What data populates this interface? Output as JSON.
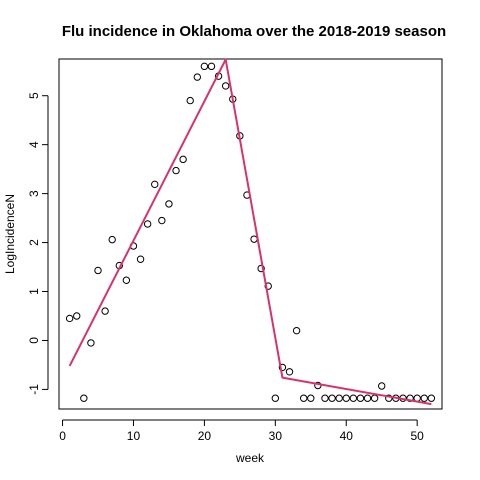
{
  "chart_data": {
    "type": "scatter",
    "title": "Flu incidence in Oklahoma over the 2018-2019 season",
    "xlabel": "week",
    "ylabel": "LogIncidenceN",
    "xlim": [
      -0.5,
      53.5
    ],
    "ylim": [
      -1.4,
      5.75
    ],
    "x_ticks": [
      0,
      10,
      20,
      30,
      40,
      50
    ],
    "y_ticks": [
      -1,
      0,
      1,
      2,
      3,
      4,
      5
    ],
    "grid": false,
    "points": {
      "x": [
        1,
        2,
        3,
        4,
        5,
        6,
        7,
        8,
        9,
        10,
        11,
        12,
        13,
        14,
        15,
        16,
        17,
        18,
        19,
        20,
        21,
        22,
        23,
        24,
        25,
        26,
        27,
        28,
        29,
        30,
        31,
        32,
        33,
        34,
        35,
        36,
        37,
        38,
        39,
        40,
        41,
        42,
        43,
        44,
        45,
        46,
        47,
        48,
        49,
        50,
        51,
        52
      ],
      "y": [
        0.45,
        0.5,
        -1.18,
        -0.05,
        1.43,
        0.6,
        2.06,
        1.53,
        1.23,
        1.93,
        1.66,
        2.38,
        3.19,
        2.45,
        2.79,
        3.47,
        3.7,
        4.9,
        5.38,
        5.6,
        5.6,
        5.4,
        5.2,
        4.93,
        4.18,
        2.97,
        2.07,
        1.47,
        1.11,
        -1.18,
        -0.55,
        -0.64,
        0.2,
        -1.18,
        -1.18,
        -0.92,
        -1.18,
        -1.18,
        -1.18,
        -1.18,
        -1.18,
        -1.18,
        -1.18,
        -1.18,
        -0.93,
        -1.18,
        -1.18,
        -1.18,
        -1.18,
        -1.18,
        -1.18,
        -1.18
      ]
    },
    "fit_line": {
      "color": "#d6336c",
      "x": [
        1,
        23,
        31,
        52
      ],
      "y": [
        -0.52,
        5.74,
        -0.76,
        -1.3
      ]
    }
  }
}
